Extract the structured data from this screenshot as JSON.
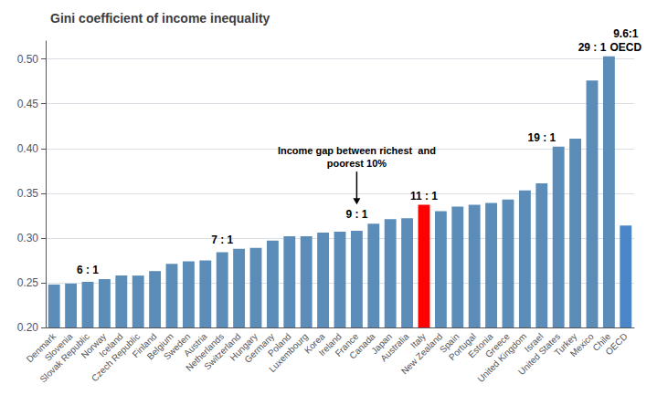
{
  "chart_data": {
    "type": "bar",
    "title": "Gini coefficient of income inequality",
    "categories": [
      "Denmark",
      "Slovenia",
      "Slovak Republic",
      "Norway",
      "Iceland",
      "Czech Republic",
      "Finland",
      "Belgium",
      "Sweden",
      "Austria",
      "Netherlands",
      "Switzerland",
      "Hungary",
      "Germany",
      "Poland",
      "Luxembourg",
      "Korea",
      "Ireland",
      "France",
      "Canada",
      "Japan",
      "Australia",
      "Italy",
      "New Zealand",
      "Spain",
      "Portugal",
      "Estonia",
      "Greece",
      "United Kingdom",
      "Israel",
      "United States",
      "Turkey",
      "Mexico",
      "Chile",
      "OECD"
    ],
    "values": [
      0.248,
      0.249,
      0.251,
      0.254,
      0.258,
      0.258,
      0.263,
      0.271,
      0.274,
      0.275,
      0.284,
      0.288,
      0.289,
      0.297,
      0.302,
      0.302,
      0.306,
      0.307,
      0.308,
      0.316,
      0.321,
      0.322,
      0.337,
      0.33,
      0.335,
      0.337,
      0.339,
      0.343,
      0.353,
      0.361,
      0.402,
      0.411,
      0.476,
      0.503,
      0.314
    ],
    "colors": [
      "#5B8DB8",
      "#5B8DB8",
      "#5B8DB8",
      "#5B8DB8",
      "#5B8DB8",
      "#5B8DB8",
      "#5B8DB8",
      "#5B8DB8",
      "#5B8DB8",
      "#5B8DB8",
      "#5B8DB8",
      "#5B8DB8",
      "#5B8DB8",
      "#5B8DB8",
      "#5B8DB8",
      "#5B8DB8",
      "#5B8DB8",
      "#5B8DB8",
      "#5B8DB8",
      "#5B8DB8",
      "#5B8DB8",
      "#5B8DB8",
      "#FF0000",
      "#5B8DB8",
      "#5B8DB8",
      "#5B8DB8",
      "#5B8DB8",
      "#5B8DB8",
      "#5B8DB8",
      "#5B8DB8",
      "#5B8DB8",
      "#5B8DB8",
      "#5B8DB8",
      "#5B8DB8",
      "#4A86C8"
    ],
    "ylim": [
      0.2,
      0.52
    ],
    "yticks": [
      {
        "value": 0.2,
        "label": "0.20"
      },
      {
        "value": 0.25,
        "label": "0.25"
      },
      {
        "value": 0.3,
        "label": "0.30"
      },
      {
        "value": 0.35,
        "label": "0.35"
      },
      {
        "value": 0.4,
        "label": "0.40"
      },
      {
        "value": 0.45,
        "label": "0.45"
      },
      {
        "value": 0.5,
        "label": "0.50"
      }
    ],
    "grid": true,
    "annotations": [
      {
        "text": "6 : 1",
        "x": "Slovak Republic"
      },
      {
        "text": "7 : 1",
        "x": "Netherlands"
      },
      {
        "text": "9 : 1",
        "x": "France"
      },
      {
        "text": "11 : 1",
        "x": "Italy"
      },
      {
        "text": "19 : 1",
        "x": "Israel"
      },
      {
        "text": "29 : 1",
        "x": "Mexico"
      },
      {
        "text": "OECD",
        "x": "OECD"
      },
      {
        "text": "9.6:1",
        "x": "OECD"
      },
      {
        "text": "Income gap between richest  and\npoorest 10%",
        "x": "France",
        "arrow": true
      }
    ]
  }
}
